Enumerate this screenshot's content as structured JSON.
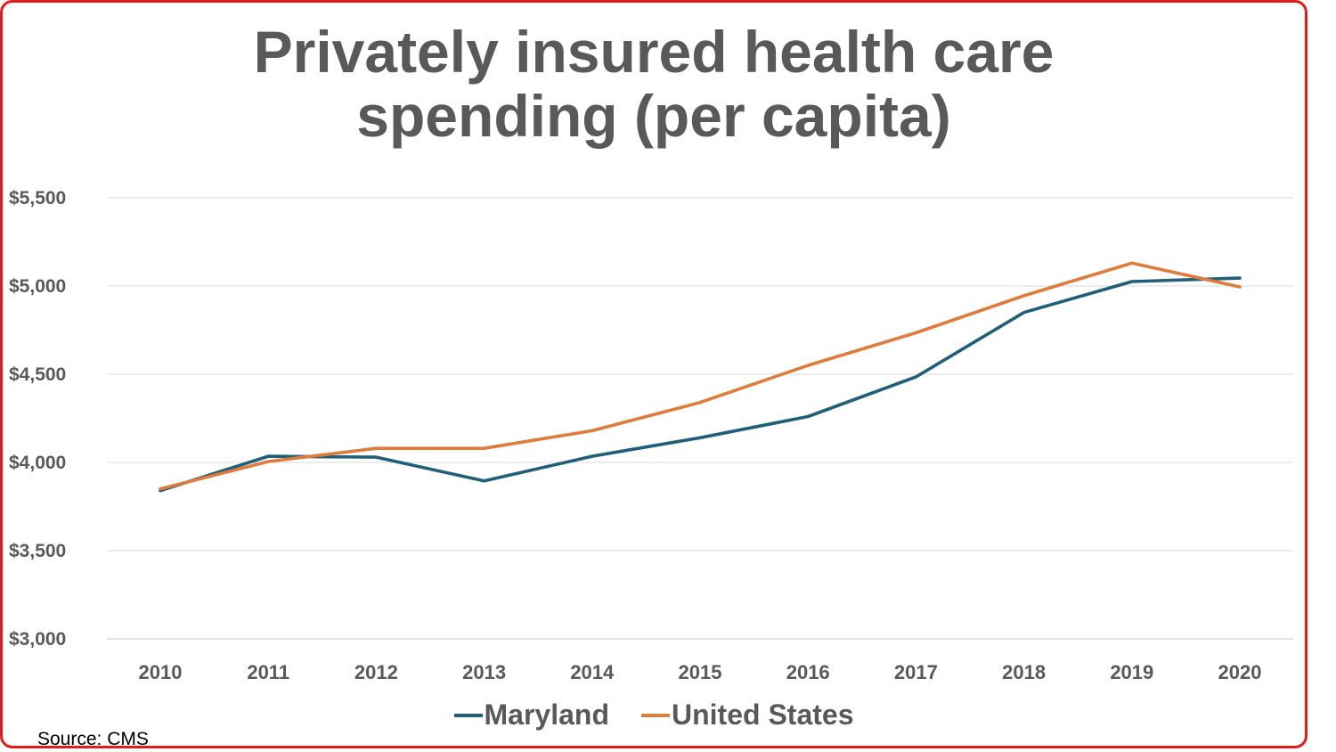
{
  "colors": {
    "frame": "#e21b1b",
    "maryland": "#1f5f7a",
    "us": "#e07b39",
    "grid": "#d9d9d9",
    "text": "#595959"
  },
  "chart_data": {
    "type": "line",
    "title_line1": "Privately insured health care",
    "title_line2": "spending (per capita)",
    "x": [
      "2010",
      "2011",
      "2012",
      "2013",
      "2014",
      "2015",
      "2016",
      "2017",
      "2018",
      "2019",
      "2020"
    ],
    "yticks": [
      "$3,000",
      "$3,500",
      "$4,000",
      "$4,500",
      "$5,000",
      "$5,500"
    ],
    "ylim": [
      3000,
      5500
    ],
    "grid": "horizontal",
    "legend_position": "bottom",
    "series": [
      {
        "name": "Maryland",
        "color": "#1f5f7a",
        "values": [
          3840,
          4035,
          4030,
          3895,
          4035,
          4140,
          4260,
          4485,
          4850,
          5025,
          5045
        ]
      },
      {
        "name": "United States",
        "color": "#e07b39",
        "values": [
          3850,
          4005,
          4080,
          4080,
          4180,
          4340,
          4550,
          4735,
          4945,
          5130,
          4995
        ]
      }
    ]
  },
  "source": "Source: CMS"
}
